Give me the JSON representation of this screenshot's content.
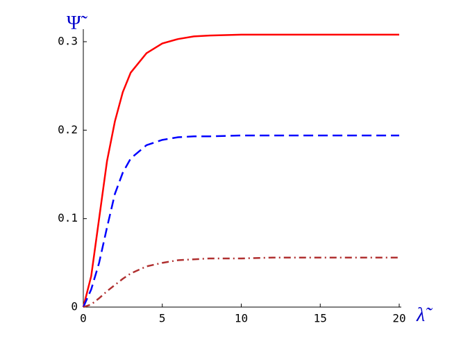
{
  "chart_data": {
    "type": "line",
    "y_label": "Ψ̃",
    "x_label": "λ̃",
    "x": [
      0,
      0.5,
      1,
      1.5,
      2,
      2.5,
      3,
      4,
      5,
      6,
      7,
      8,
      10,
      12,
      15,
      20
    ],
    "series": [
      {
        "color": "#ff0000",
        "dash": "solid",
        "values": [
          0,
          0.035,
          0.1,
          0.165,
          0.21,
          0.243,
          0.265,
          0.287,
          0.298,
          0.303,
          0.306,
          0.307,
          0.308,
          0.308,
          0.308,
          0.308
        ]
      },
      {
        "color": "#0000ff",
        "dash": "dashed",
        "values": [
          0,
          0.02,
          0.05,
          0.09,
          0.128,
          0.152,
          0.168,
          0.183,
          0.189,
          0.192,
          0.193,
          0.193,
          0.194,
          0.194,
          0.194,
          0.194
        ]
      },
      {
        "color": "#b03030",
        "dash": "dashdot",
        "values": [
          0,
          0.003,
          0.01,
          0.018,
          0.025,
          0.032,
          0.038,
          0.046,
          0.05,
          0.053,
          0.054,
          0.055,
          0.055,
          0.056,
          0.056,
          0.056
        ]
      }
    ],
    "xlim": [
      0,
      20
    ],
    "xticks": [
      0,
      5,
      10,
      15,
      20
    ],
    "ylim": [
      0,
      0.3
    ],
    "yticks": [
      0,
      0.1,
      0.2,
      0.3
    ]
  }
}
